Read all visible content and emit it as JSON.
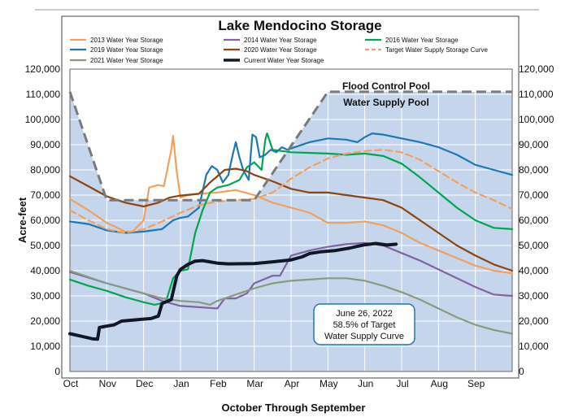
{
  "chart_data": {
    "type": "line",
    "title": "Lake Mendocino Storage",
    "xlabel": "October Through September",
    "ylabel": "Acre-feet",
    "ylim": [
      0,
      120000
    ],
    "yticks": [
      0,
      10000,
      20000,
      30000,
      40000,
      50000,
      60000,
      70000,
      80000,
      90000,
      100000,
      110000,
      120000
    ],
    "ytick_labels": [
      "0",
      "10,000",
      "20,000",
      "30,000",
      "40,000",
      "50,000",
      "60,000",
      "70,000",
      "80,000",
      "90,000",
      "100,000",
      "110,000",
      "120,000"
    ],
    "x_unit": "months since Oct 1",
    "xlim": [
      0,
      12
    ],
    "months": [
      "Oct",
      "Nov",
      "Dec",
      "Jan",
      "Feb",
      "Mar",
      "Apr",
      "May",
      "Jun",
      "Jul",
      "Aug",
      "Sep"
    ],
    "grid": true,
    "legend_position": "top",
    "annotations": {
      "flood_pool": "Flood Control Pool",
      "water_supply_pool": "Water Supply Pool",
      "callout": [
        "June 26, 2022",
        "58.5% of Target",
        "Water Supply Curve"
      ]
    },
    "flood_control_curve": [
      [
        0,
        111000
      ],
      [
        1,
        68000
      ],
      [
        5,
        68000
      ],
      [
        7,
        111000
      ],
      [
        12,
        111000
      ]
    ],
    "series": [
      {
        "name": "2013 Water Year Storage",
        "color": "#F0A060",
        "points": [
          [
            0,
            68500
          ],
          [
            0.5,
            64000
          ],
          [
            1,
            59000
          ],
          [
            1.5,
            55500
          ],
          [
            1.7,
            55500
          ],
          [
            2,
            60000
          ],
          [
            2.15,
            73000
          ],
          [
            2.4,
            74000
          ],
          [
            2.55,
            73500
          ],
          [
            2.75,
            88000
          ],
          [
            2.8,
            93500
          ],
          [
            2.9,
            79000
          ],
          [
            3.0,
            69000
          ],
          [
            3.2,
            70000
          ],
          [
            3.5,
            70500
          ],
          [
            4,
            71000
          ],
          [
            4.5,
            72000
          ],
          [
            5,
            70000
          ],
          [
            5.5,
            67000
          ],
          [
            6,
            65000
          ],
          [
            6.5,
            63000
          ],
          [
            7,
            59000
          ],
          [
            7.5,
            59000
          ],
          [
            8,
            59500
          ],
          [
            8.5,
            58000
          ],
          [
            9,
            55000
          ],
          [
            9.5,
            51000
          ],
          [
            10,
            48000
          ],
          [
            10.5,
            45000
          ],
          [
            11,
            42000
          ],
          [
            11.5,
            40000
          ],
          [
            12,
            39000
          ]
        ]
      },
      {
        "name": "2014 Water Year Storage",
        "color": "#8064A2",
        "points": [
          [
            0,
            39500
          ],
          [
            1,
            35000
          ],
          [
            2,
            31000
          ],
          [
            2.5,
            28000
          ],
          [
            3,
            26000
          ],
          [
            3.5,
            25500
          ],
          [
            4,
            25000
          ],
          [
            4.2,
            29000
          ],
          [
            4.5,
            29000
          ],
          [
            4.8,
            31000
          ],
          [
            5,
            35000
          ],
          [
            5.5,
            38000
          ],
          [
            5.7,
            38000
          ],
          [
            6,
            46000
          ],
          [
            6.5,
            48000
          ],
          [
            7,
            49500
          ],
          [
            7.5,
            50500
          ],
          [
            8,
            51000
          ],
          [
            8.5,
            50000
          ],
          [
            9,
            47000
          ],
          [
            9.5,
            44000
          ],
          [
            10,
            40500
          ],
          [
            10.5,
            37000
          ],
          [
            11,
            33500
          ],
          [
            11.5,
            30500
          ],
          [
            12,
            30000
          ]
        ]
      },
      {
        "name": "2016 Water Year Storage",
        "color": "#00A650",
        "points": [
          [
            0,
            36500
          ],
          [
            0.5,
            34000
          ],
          [
            1,
            32000
          ],
          [
            1.5,
            29500
          ],
          [
            2,
            27500
          ],
          [
            2.3,
            26500
          ],
          [
            2.6,
            27500
          ],
          [
            2.8,
            37000
          ],
          [
            3.0,
            40000
          ],
          [
            3.2,
            40500
          ],
          [
            3.4,
            55000
          ],
          [
            3.6,
            64000
          ],
          [
            3.8,
            71000
          ],
          [
            4,
            73000
          ],
          [
            4.3,
            74000
          ],
          [
            4.6,
            76000
          ],
          [
            4.8,
            81000
          ],
          [
            5.0,
            83000
          ],
          [
            5.2,
            80000
          ],
          [
            5.3,
            92000
          ],
          [
            5.35,
            94500
          ],
          [
            5.5,
            88000
          ],
          [
            6,
            87000
          ],
          [
            7,
            86500
          ],
          [
            7.5,
            86000
          ],
          [
            8,
            86500
          ],
          [
            8.5,
            85500
          ],
          [
            9,
            82500
          ],
          [
            9.5,
            77000
          ],
          [
            10,
            71000
          ],
          [
            10.5,
            65000
          ],
          [
            11,
            60000
          ],
          [
            11.5,
            57000
          ],
          [
            12,
            56500
          ]
        ]
      },
      {
        "name": "2019 Water Year Storage",
        "color": "#1F77B4",
        "points": [
          [
            0,
            59500
          ],
          [
            0.5,
            58500
          ],
          [
            1,
            56000
          ],
          [
            1.5,
            55000
          ],
          [
            2,
            55500
          ],
          [
            2.5,
            56500
          ],
          [
            2.8,
            60000
          ],
          [
            3,
            61000
          ],
          [
            3.2,
            61500
          ],
          [
            3.5,
            65000
          ],
          [
            3.7,
            78000
          ],
          [
            3.85,
            81500
          ],
          [
            4.0,
            80000
          ],
          [
            4.15,
            75000
          ],
          [
            4.3,
            78000
          ],
          [
            4.4,
            85000
          ],
          [
            4.5,
            91000
          ],
          [
            4.6,
            85000
          ],
          [
            4.7,
            80000
          ],
          [
            4.85,
            76000
          ],
          [
            4.95,
            94000
          ],
          [
            5.05,
            93000
          ],
          [
            5.15,
            85000
          ],
          [
            5.3,
            86000
          ],
          [
            5.45,
            88000
          ],
          [
            5.6,
            87000
          ],
          [
            5.75,
            89000
          ],
          [
            5.9,
            88000
          ],
          [
            6.1,
            89000
          ],
          [
            6.5,
            91000
          ],
          [
            7,
            92500
          ],
          [
            7.5,
            92000
          ],
          [
            7.8,
            91000
          ],
          [
            8,
            93000
          ],
          [
            8.2,
            94500
          ],
          [
            8.5,
            94000
          ],
          [
            9,
            92500
          ],
          [
            9.5,
            91000
          ],
          [
            10,
            89000
          ],
          [
            10.5,
            86000
          ],
          [
            11,
            82000
          ],
          [
            11.5,
            80000
          ],
          [
            12,
            78000
          ]
        ]
      },
      {
        "name": "2020 Water Year Storage",
        "color": "#8B4513",
        "points": [
          [
            0,
            77500
          ],
          [
            0.5,
            73500
          ],
          [
            1,
            69500
          ],
          [
            1.5,
            67000
          ],
          [
            2,
            65500
          ],
          [
            2.4,
            67000
          ],
          [
            2.7,
            69000
          ],
          [
            3,
            69800
          ],
          [
            3.5,
            70500
          ],
          [
            3.8,
            75000
          ],
          [
            4.2,
            80000
          ],
          [
            4.5,
            80500
          ],
          [
            4.8,
            79500
          ],
          [
            5,
            78000
          ],
          [
            5.5,
            75500
          ],
          [
            6,
            72500
          ],
          [
            6.5,
            71000
          ],
          [
            7,
            71000
          ],
          [
            7.5,
            70000
          ],
          [
            8,
            69000
          ],
          [
            8.5,
            68000
          ],
          [
            9,
            65000
          ],
          [
            9.5,
            60000
          ],
          [
            10,
            55000
          ],
          [
            10.5,
            50000
          ],
          [
            11,
            46000
          ],
          [
            11.5,
            42500
          ],
          [
            12,
            40000
          ]
        ]
      },
      {
        "name": "Target Water Supply Storage Curve",
        "color": "#F0A060",
        "dashed": true,
        "points": [
          [
            0,
            64000
          ],
          [
            0.5,
            60000
          ],
          [
            1,
            56500
          ],
          [
            1.5,
            55000
          ],
          [
            2,
            56500
          ],
          [
            2.5,
            59500
          ],
          [
            3,
            63000
          ],
          [
            3.5,
            66000
          ],
          [
            4,
            67500
          ],
          [
            5,
            68500
          ],
          [
            5.5,
            71000
          ],
          [
            6,
            76500
          ],
          [
            6.5,
            81000
          ],
          [
            7,
            84500
          ],
          [
            7.5,
            86500
          ],
          [
            8,
            87500
          ],
          [
            8.5,
            88000
          ],
          [
            9,
            87000
          ],
          [
            9.5,
            84000
          ],
          [
            10,
            79500
          ],
          [
            10.5,
            75000
          ],
          [
            11,
            71000
          ],
          [
            11.5,
            68000
          ],
          [
            12,
            64500
          ]
        ]
      },
      {
        "name": "2021 Water Year Storage",
        "color": "#8A9A80",
        "points": [
          [
            0,
            40000
          ],
          [
            0.5,
            37500
          ],
          [
            1,
            35000
          ],
          [
            1.5,
            33000
          ],
          [
            2,
            31000
          ],
          [
            2.5,
            29000
          ],
          [
            3,
            28000
          ],
          [
            3.5,
            27500
          ],
          [
            3.8,
            26500
          ],
          [
            4,
            28000
          ],
          [
            4.5,
            30500
          ],
          [
            5,
            33000
          ],
          [
            5.5,
            35000
          ],
          [
            6,
            36000
          ],
          [
            6.5,
            36500
          ],
          [
            7,
            37000
          ],
          [
            7.5,
            37000
          ],
          [
            8,
            36000
          ],
          [
            8.5,
            34000
          ],
          [
            9,
            31500
          ],
          [
            9.5,
            28500
          ],
          [
            10,
            25000
          ],
          [
            10.5,
            21500
          ],
          [
            11,
            18500
          ],
          [
            11.5,
            16500
          ],
          [
            12,
            15000
          ]
        ]
      },
      {
        "name": "Current Water Year Storage",
        "color": "#101828",
        "bold": true,
        "points": [
          [
            0,
            15000
          ],
          [
            0.3,
            14000
          ],
          [
            0.6,
            13000
          ],
          [
            0.75,
            12800
          ],
          [
            0.8,
            17500
          ],
          [
            1.0,
            18000
          ],
          [
            1.2,
            18500
          ],
          [
            1.4,
            20000
          ],
          [
            1.8,
            20500
          ],
          [
            2.2,
            21000
          ],
          [
            2.4,
            22000
          ],
          [
            2.5,
            27000
          ],
          [
            2.75,
            28500
          ],
          [
            2.9,
            38000
          ],
          [
            3.0,
            40500
          ],
          [
            3.2,
            42500
          ],
          [
            3.4,
            43800
          ],
          [
            3.6,
            44000
          ],
          [
            4,
            43000
          ],
          [
            4.3,
            42700
          ],
          [
            5,
            42800
          ],
          [
            5.5,
            43500
          ],
          [
            6,
            44300
          ],
          [
            6.3,
            45500
          ],
          [
            6.5,
            46800
          ],
          [
            6.8,
            47500
          ],
          [
            7.2,
            48000
          ],
          [
            7.6,
            49000
          ],
          [
            8,
            50300
          ],
          [
            8.3,
            50800
          ],
          [
            8.6,
            50200
          ],
          [
            8.85,
            50500
          ]
        ]
      }
    ]
  }
}
